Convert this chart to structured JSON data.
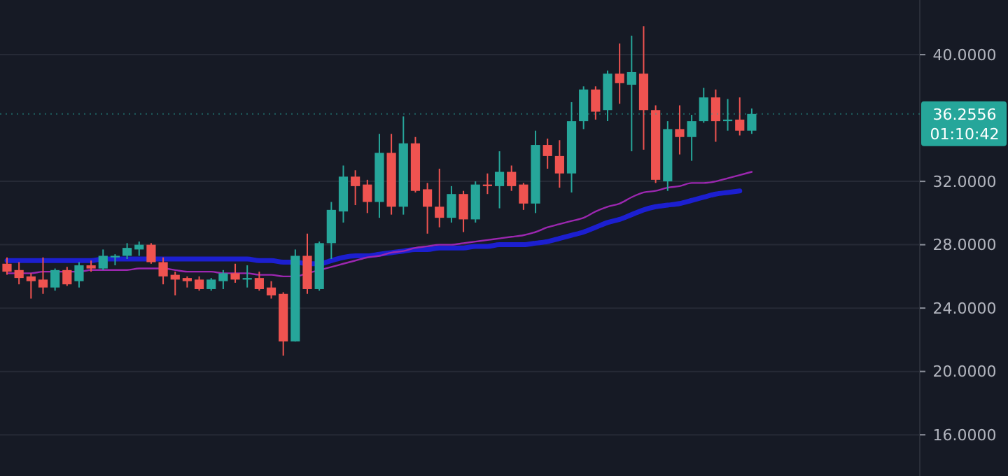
{
  "chart_data": {
    "type": "candlestick",
    "categories": [
      null,
      null,
      null,
      null,
      null,
      null,
      null,
      null,
      null,
      null,
      null,
      null,
      null,
      null,
      null,
      null,
      null,
      null,
      null,
      null,
      null,
      null,
      null,
      null,
      null,
      null,
      null,
      null,
      null,
      null,
      null,
      null,
      null,
      null,
      null,
      null,
      null,
      null,
      null,
      null,
      null,
      null,
      null,
      null,
      null,
      null,
      null,
      null,
      null,
      null,
      null,
      null,
      null,
      null,
      null,
      null,
      null,
      null,
      null,
      null,
      null,
      null,
      null
    ],
    "ylim": [
      13.4,
      43.45
    ],
    "yticks": [
      {
        "value": 16,
        "label": "16.0000"
      },
      {
        "value": 20,
        "label": "20.0000"
      },
      {
        "value": 24,
        "label": "24.0000"
      },
      {
        "value": 28,
        "label": "28.0000"
      },
      {
        "value": 32,
        "label": "32.0000"
      },
      {
        "value": 40,
        "label": "40.0000"
      }
    ],
    "grid": "y",
    "ohlc": [
      [
        26.8,
        27.2,
        26.1,
        26.3
      ],
      [
        26.4,
        26.9,
        25.5,
        25.9
      ],
      [
        26.0,
        26.2,
        24.6,
        25.7
      ],
      [
        25.8,
        27.2,
        24.9,
        25.3
      ],
      [
        25.3,
        26.5,
        25.1,
        26.4
      ],
      [
        26.4,
        26.6,
        25.4,
        25.5
      ],
      [
        25.7,
        26.9,
        25.3,
        26.7
      ],
      [
        26.7,
        27.0,
        26.3,
        26.5
      ],
      [
        26.5,
        27.7,
        26.4,
        27.3
      ],
      [
        27.2,
        27.4,
        26.7,
        27.3
      ],
      [
        27.3,
        28.1,
        27.1,
        27.8
      ],
      [
        27.7,
        28.2,
        27.3,
        28.0
      ],
      [
        28.0,
        28.1,
        26.8,
        26.9
      ],
      [
        26.9,
        27.2,
        25.5,
        26.0
      ],
      [
        26.1,
        26.3,
        24.8,
        25.8
      ],
      [
        25.9,
        26.0,
        25.3,
        25.7
      ],
      [
        25.8,
        26.0,
        25.1,
        25.2
      ],
      [
        25.2,
        25.9,
        25.1,
        25.8
      ],
      [
        25.7,
        26.4,
        25.2,
        26.2
      ],
      [
        26.2,
        26.8,
        25.6,
        25.8
      ],
      [
        25.8,
        26.7,
        25.3,
        25.9
      ],
      [
        25.9,
        26.3,
        25.1,
        25.2
      ],
      [
        25.3,
        25.7,
        24.6,
        24.8
      ],
      [
        24.9,
        25.0,
        21.0,
        21.9
      ],
      [
        21.9,
        27.7,
        21.9,
        27.3
      ],
      [
        27.3,
        28.7,
        24.9,
        25.2
      ],
      [
        25.2,
        28.2,
        25.1,
        28.1
      ],
      [
        28.1,
        30.7,
        27.1,
        30.2
      ],
      [
        30.1,
        33.0,
        29.4,
        32.3
      ],
      [
        32.3,
        32.7,
        30.5,
        31.7
      ],
      [
        31.8,
        32.1,
        30.0,
        30.7
      ],
      [
        30.7,
        35.0,
        29.7,
        33.8
      ],
      [
        33.8,
        35.0,
        29.9,
        30.4
      ],
      [
        30.4,
        36.1,
        29.9,
        34.4
      ],
      [
        34.4,
        34.8,
        31.3,
        31.4
      ],
      [
        31.5,
        31.9,
        28.7,
        30.4
      ],
      [
        30.4,
        32.8,
        29.1,
        29.7
      ],
      [
        29.7,
        31.7,
        29.4,
        31.2
      ],
      [
        31.2,
        31.4,
        28.8,
        29.6
      ],
      [
        29.6,
        32.0,
        29.4,
        31.8
      ],
      [
        31.8,
        32.5,
        31.2,
        31.7
      ],
      [
        31.7,
        33.9,
        30.3,
        32.6
      ],
      [
        32.6,
        33.0,
        31.4,
        31.7
      ],
      [
        31.8,
        31.9,
        30.2,
        30.6
      ],
      [
        30.6,
        35.2,
        30.0,
        34.3
      ],
      [
        34.3,
        34.7,
        32.8,
        33.6
      ],
      [
        33.6,
        34.6,
        31.6,
        32.5
      ],
      [
        32.5,
        37.0,
        31.3,
        35.8
      ],
      [
        35.8,
        38.0,
        35.3,
        37.8
      ],
      [
        37.8,
        38.0,
        35.9,
        36.4
      ],
      [
        36.5,
        39.0,
        35.8,
        38.8
      ],
      [
        38.8,
        40.7,
        36.9,
        38.2
      ],
      [
        38.1,
        41.2,
        33.9,
        38.9
      ],
      [
        38.8,
        41.8,
        34.0,
        36.5
      ],
      [
        36.5,
        36.8,
        31.9,
        32.1
      ],
      [
        32.0,
        35.8,
        31.4,
        35.3
      ],
      [
        35.3,
        36.8,
        33.7,
        34.8
      ],
      [
        34.8,
        36.2,
        33.3,
        35.8
      ],
      [
        35.8,
        37.9,
        35.7,
        37.3
      ],
      [
        37.3,
        37.8,
        34.5,
        35.8
      ],
      [
        35.8,
        37.2,
        35.2,
        35.9
      ],
      [
        35.9,
        37.3,
        34.9,
        35.2
      ],
      [
        35.2,
        36.6,
        35.0,
        36.2556
      ]
    ],
    "colors": [
      "#ef5350",
      "#ef5350",
      "#ef5350",
      "#ef5350",
      "#26a69a",
      "#ef5350",
      "#26a69a",
      "#ef5350",
      "#26a69a",
      "#26a69a",
      "#26a69a",
      "#26a69a",
      "#ef5350",
      "#ef5350",
      "#ef5350",
      "#ef5350",
      "#ef5350",
      "#26a69a",
      "#26a69a",
      "#ef5350",
      "#26a69a",
      "#ef5350",
      "#ef5350",
      "#ef5350",
      "#26a69a",
      "#ef5350",
      "#26a69a",
      "#26a69a",
      "#26a69a",
      "#ef5350",
      "#ef5350",
      "#26a69a",
      "#ef5350",
      "#26a69a",
      "#ef5350",
      "#ef5350",
      "#ef5350",
      "#26a69a",
      "#ef5350",
      "#26a69a",
      "#ef5350",
      "#26a69a",
      "#ef5350",
      "#ef5350",
      "#26a69a",
      "#ef5350",
      "#ef5350",
      "#26a69a",
      "#26a69a",
      "#ef5350",
      "#26a69a",
      "#ef5350",
      "#26a69a",
      "#ef5350",
      "#ef5350",
      "#26a69a",
      "#ef5350",
      "#26a69a",
      "#26a69a",
      "#ef5350",
      "#26a69a",
      "#ef5350",
      "#26a69a"
    ],
    "series": [
      {
        "type": "line",
        "color": "#9c27b0",
        "values": [
          26.2,
          26.2,
          26.2,
          26.3,
          26.3,
          26.3,
          26.3,
          26.4,
          26.4,
          26.4,
          26.4,
          26.5,
          26.5,
          26.5,
          26.4,
          26.3,
          26.3,
          26.3,
          26.2,
          26.2,
          26.2,
          26.1,
          26.1,
          26.0,
          26.0,
          26.2,
          26.4,
          26.6,
          26.8,
          27.0,
          27.2,
          27.3,
          27.5,
          27.6,
          27.8,
          27.9,
          28.0,
          28.0,
          28.1,
          28.2,
          28.3,
          28.4,
          28.5,
          28.6,
          28.8,
          29.1,
          29.3,
          29.5,
          29.7,
          30.1,
          30.4,
          30.6,
          31.0,
          31.3,
          31.4,
          31.6,
          31.7,
          31.9,
          31.9,
          32.0,
          32.2,
          32.4,
          32.6
        ]
      },
      {
        "type": "line",
        "color": "#1c1fd0",
        "values": [
          27.0,
          27.0,
          27.0,
          27.0,
          27.0,
          27.0,
          27.0,
          27.0,
          27.1,
          27.1,
          27.1,
          27.1,
          27.1,
          27.1,
          27.1,
          27.1,
          27.1,
          27.1,
          27.1,
          27.1,
          27.1,
          27.0,
          27.0,
          26.9,
          26.9,
          26.8,
          26.8,
          27.0,
          27.2,
          27.3,
          27.3,
          27.4,
          27.5,
          27.6,
          27.7,
          27.7,
          27.8,
          27.8,
          27.8,
          27.9,
          27.9,
          28.0,
          28.0,
          28.0,
          28.1,
          28.2,
          28.4,
          28.6,
          28.8,
          29.1,
          29.4,
          29.6,
          29.9,
          30.2,
          30.4,
          30.5,
          30.6,
          30.8,
          31.0,
          31.2,
          31.3,
          31.4,
          null
        ]
      }
    ],
    "ref_lines": [
      {
        "axis": "y",
        "value": 36.2556,
        "label": "36.2556",
        "color": "#26a69a"
      }
    ],
    "annotations": [
      "01:10:42"
    ]
  }
}
